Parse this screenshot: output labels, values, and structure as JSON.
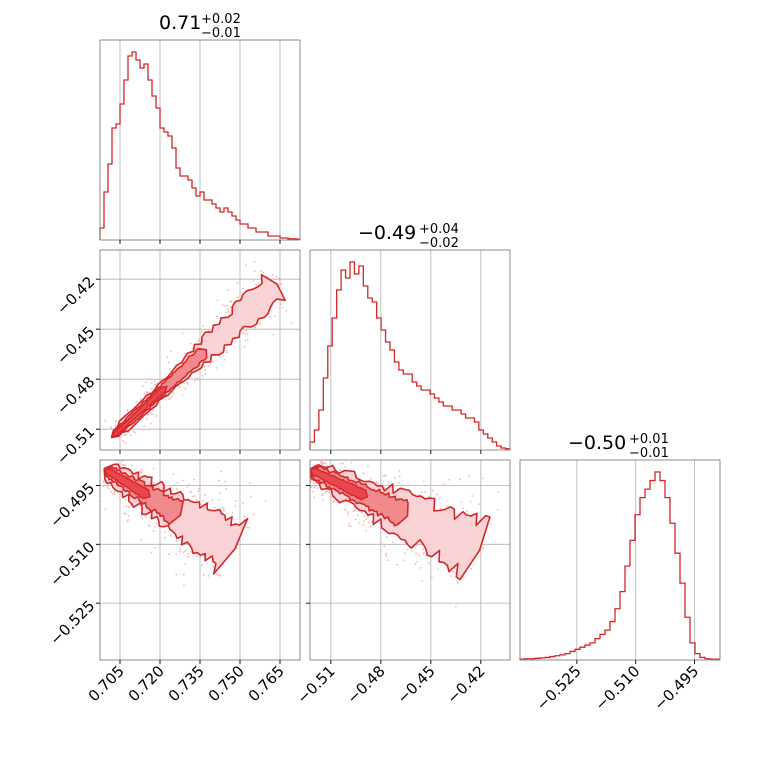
{
  "colors": {
    "line": "#d62728",
    "fill_light": "#f9d3d6",
    "fill_mid": "#f08a8f",
    "scatter": "#f3b7bc"
  },
  "chart_data": {
    "type": "corner",
    "parameters": [
      {
        "title_value": "0.71",
        "title_plus": "+0.02",
        "title_minus": "−0.01",
        "range": [
          0.6975,
          0.7725
        ],
        "ticks": [
          {
            "value": 0.705,
            "label": "0.705"
          },
          {
            "value": 0.72,
            "label": "0.720"
          },
          {
            "value": 0.735,
            "label": "0.735"
          },
          {
            "value": 0.75,
            "label": "0.750"
          },
          {
            "value": 0.765,
            "label": "0.765"
          }
        ],
        "hist": [
          3,
          12,
          19,
          28,
          29,
          34,
          40,
          46,
          47,
          45,
          43,
          44,
          40,
          36,
          33,
          28,
          27,
          26,
          23,
          18,
          16,
          16,
          15,
          13,
          11,
          12,
          10,
          10,
          9,
          8,
          7,
          8,
          7,
          6,
          5,
          4,
          4,
          3,
          3,
          2,
          2,
          2,
          1,
          1,
          1,
          0.5,
          0.5,
          0.3,
          0.3,
          0.2
        ]
      },
      {
        "title_value": "−0.49",
        "title_plus": "+0.04",
        "title_minus": "−0.02",
        "range": [
          -0.5225,
          -0.4025
        ],
        "ticks": [
          {
            "value": -0.51,
            "label": "−0.51"
          },
          {
            "value": -0.48,
            "label": "−0.48"
          },
          {
            "value": -0.45,
            "label": "−0.45"
          },
          {
            "value": -0.42,
            "label": "−0.42"
          }
        ],
        "hist": [
          2,
          5,
          10,
          18,
          26,
          33,
          40,
          45,
          43,
          47,
          44,
          46,
          41,
          38,
          37,
          33,
          30,
          27,
          25,
          22,
          20,
          19,
          19,
          17,
          16,
          15,
          15,
          14,
          13,
          12,
          11,
          11,
          10,
          10,
          9,
          8,
          8,
          7,
          5,
          4,
          3,
          2,
          1,
          0.5,
          0.3
        ]
      },
      {
        "title_value": "−0.50",
        "title_plus": "+0.01",
        "title_minus": "−0.01",
        "range": [
          -0.5395,
          -0.4885
        ],
        "ticks": [
          {
            "value": -0.525,
            "label": "−0.525"
          },
          {
            "value": -0.51,
            "label": "−0.510"
          },
          {
            "value": -0.495,
            "label": "−0.495"
          }
        ],
        "hist": [
          0.2,
          0.3,
          0.3,
          0.4,
          0.5,
          0.6,
          0.8,
          1,
          1.2,
          1.5,
          2,
          2.5,
          3,
          3.5,
          4,
          5,
          6,
          7,
          9,
          12,
          16,
          22,
          28,
          34,
          38,
          40,
          42,
          44,
          42,
          38,
          32,
          25,
          18,
          10,
          4,
          1.5,
          0.6,
          0.3,
          0.2,
          0.2
        ]
      }
    ],
    "pairs": [
      {
        "row": 1,
        "col": 0,
        "slope": 3.2,
        "anchor": [
          0.7035,
          -0.5125
        ],
        "end": [
          0.7625,
          -0.425
        ],
        "width_low": 0.0018,
        "width_high": 0.0052
      },
      {
        "row": 2,
        "col": 0,
        "slope": -0.4,
        "anchor": [
          0.701,
          -0.4915
        ],
        "end": [
          0.7465,
          -0.5105
        ],
        "width_low": 0.0014,
        "width_high": 0.0042
      },
      {
        "row": 2,
        "col": 1,
        "slope": -0.2,
        "anchor": [
          -0.5195,
          -0.4915
        ],
        "end": [
          -0.4235,
          -0.511
        ],
        "width_low": 0.0016,
        "width_high": 0.0044
      }
    ]
  }
}
